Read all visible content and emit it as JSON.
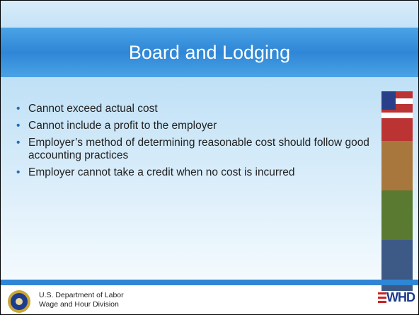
{
  "header": {
    "title": "Board and Lodging"
  },
  "bullets": [
    "Cannot exceed actual cost",
    "Cannot include a profit to the employer",
    "Employer’s method of determining reasonable cost should follow good accounting practices",
    "Employer cannot take a credit when no cost is incurred"
  ],
  "footer": {
    "line1": "U.S. Department of Labor",
    "line2": "Wage and Hour Division",
    "logo": "WHD"
  }
}
